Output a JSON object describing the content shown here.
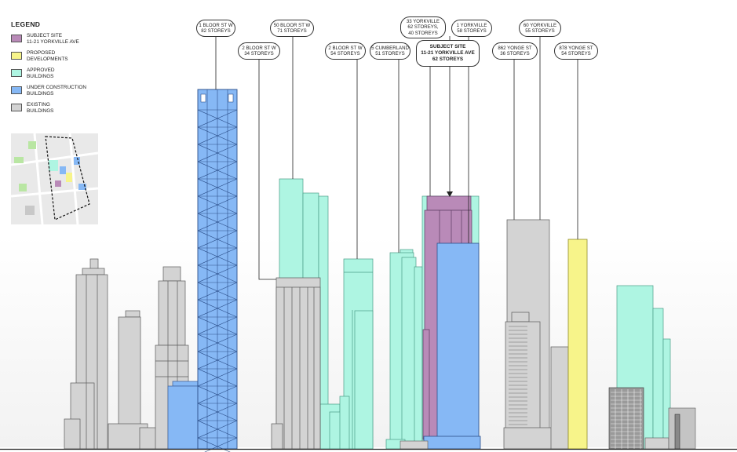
{
  "legend": {
    "title": "LEGEND",
    "items": [
      {
        "label": "SUBJECT SITE\n11-21 YORKVILLE AVE",
        "color": "#b98ab8"
      },
      {
        "label": "PROPOSED\nDEVELOPMENTS",
        "color": "#f7f48a"
      },
      {
        "label": "APPROVED\nBUILDINGS",
        "color": "#aef5e2"
      },
      {
        "label": "UNDER CONSTRUCTION\nBUILDINGS",
        "color": "#86b8f5"
      },
      {
        "label": "EXISTING\nBUILDINGS",
        "color": "#d3d3d3"
      }
    ]
  },
  "callouts": {
    "one_bloor": {
      "name": "1 BLOOR ST W",
      "storeys": "82 STOREYS"
    },
    "two_bloor": {
      "name": "2 BLOOR ST W",
      "storeys": "34 STOREYS"
    },
    "fifty_bloor": {
      "name": "50 BLOOR ST W",
      "storeys": "71 STOREYS"
    },
    "two_bloor_e": {
      "name": "2 BLOOR ST W",
      "storeys": "54 STOREYS"
    },
    "cumberland": {
      "name": "5 CUMBERLAND",
      "storeys": "51 STOREYS"
    },
    "yorkville33": {
      "name": "33 YORKVILLE",
      "storeys": "62 STOREYS,",
      "storeys2": "40 STOREYS"
    },
    "subject": {
      "name": "SUBJECT SITE",
      "address": "11-21 YORKVILLE AVE",
      "storeys": "62 STOREYS"
    },
    "yorkville1": {
      "name": "1 YORKVILLE",
      "storeys": "58 STOREYS"
    },
    "yonge862": {
      "name": "862 YONGE ST",
      "storeys": "36 STOREYS"
    },
    "yorkville60": {
      "name": "60 YORKVILLE",
      "storeys": "55 STOREYS"
    },
    "yonge878": {
      "name": "878 YONGE ST",
      "storeys": "54 STOREYS"
    }
  },
  "colors": {
    "existing": "#d3d3d3",
    "approved": "#aef5e2",
    "under_construction": "#86b8f5",
    "proposed": "#f7f48a",
    "subject": "#b98ab8",
    "outline": "#5a5a5a"
  },
  "icons": {
    "keymap": "site-key-map"
  }
}
